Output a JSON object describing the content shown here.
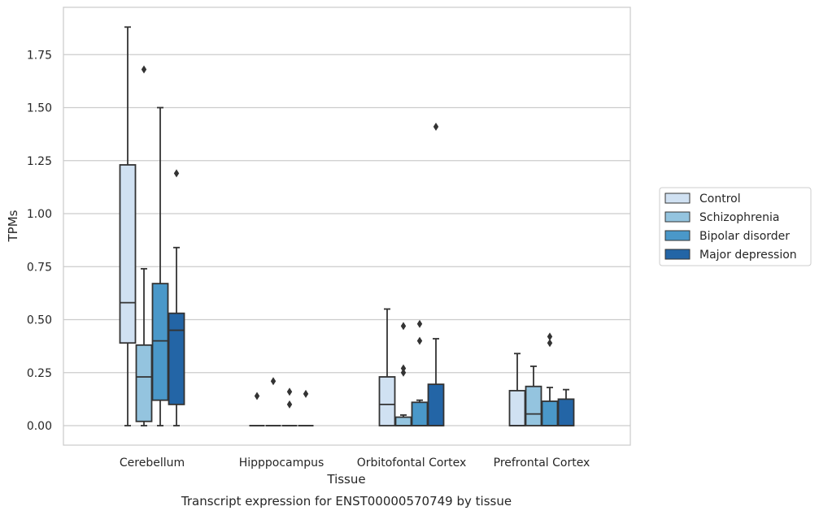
{
  "caption": "Transcript expression for ENST00000570749 by tissue",
  "chart_data": {
    "type": "box",
    "xlabel": "Tissue",
    "ylabel": "TPMs",
    "ylim": [
      -0.09,
      1.98
    ],
    "yticks": [
      "0.00",
      "0.25",
      "0.50",
      "0.75",
      "1.00",
      "1.25",
      "1.50",
      "1.75"
    ],
    "grid": "horizontal",
    "legend_position": "right",
    "categories": [
      "Cerebellum",
      "Hipppocampus",
      "Orbitofontal Cortex",
      "Prefrontal Cortex"
    ],
    "series": [
      {
        "name": "Control",
        "color": "#d0e1f2",
        "boxes": [
          {
            "whislo": 0.0,
            "q1": 0.39,
            "med": 0.58,
            "q3": 1.23,
            "whishi": 1.88,
            "fliers": []
          },
          {
            "whislo": 0.0,
            "q1": 0.0,
            "med": 0.0,
            "q3": 0.0,
            "whishi": 0.0,
            "fliers": [
              0.14
            ]
          },
          {
            "whislo": 0.0,
            "q1": 0.0,
            "med": 0.1,
            "q3": 0.23,
            "whishi": 0.55,
            "fliers": []
          },
          {
            "whislo": 0.0,
            "q1": 0.0,
            "med": 0.0,
            "q3": 0.165,
            "whishi": 0.34,
            "fliers": []
          }
        ]
      },
      {
        "name": "Schizophrenia",
        "color": "#94c4df",
        "boxes": [
          {
            "whislo": 0.0,
            "q1": 0.02,
            "med": 0.23,
            "q3": 0.38,
            "whishi": 0.74,
            "fliers": [
              1.68
            ]
          },
          {
            "whislo": 0.0,
            "q1": 0.0,
            "med": 0.0,
            "q3": 0.0,
            "whishi": 0.0,
            "fliers": [
              0.21
            ]
          },
          {
            "whislo": 0.0,
            "q1": 0.0,
            "med": 0.0,
            "q3": 0.04,
            "whishi": 0.05,
            "fliers": [
              0.47,
              0.27,
              0.25
            ]
          },
          {
            "whislo": 0.0,
            "q1": 0.0,
            "med": 0.055,
            "q3": 0.185,
            "whishi": 0.28,
            "fliers": []
          }
        ]
      },
      {
        "name": "Bipolar disorder",
        "color": "#4a98c9",
        "boxes": [
          {
            "whislo": 0.0,
            "q1": 0.12,
            "med": 0.4,
            "q3": 0.67,
            "whishi": 1.5,
            "fliers": []
          },
          {
            "whislo": 0.0,
            "q1": 0.0,
            "med": 0.0,
            "q3": 0.0,
            "whishi": 0.0,
            "fliers": [
              0.16,
              0.1
            ]
          },
          {
            "whislo": 0.0,
            "q1": 0.0,
            "med": 0.0,
            "q3": 0.11,
            "whishi": 0.12,
            "fliers": [
              0.48,
              0.4
            ]
          },
          {
            "whislo": 0.0,
            "q1": 0.0,
            "med": 0.0,
            "q3": 0.115,
            "whishi": 0.18,
            "fliers": [
              0.42,
              0.39
            ]
          }
        ]
      },
      {
        "name": "Major depression",
        "color": "#2365a6",
        "boxes": [
          {
            "whislo": 0.0,
            "q1": 0.1,
            "med": 0.45,
            "q3": 0.53,
            "whishi": 0.84,
            "fliers": [
              1.19
            ]
          },
          {
            "whislo": 0.0,
            "q1": 0.0,
            "med": 0.0,
            "q3": 0.0,
            "whishi": 0.0,
            "fliers": [
              0.15
            ]
          },
          {
            "whislo": 0.0,
            "q1": 0.0,
            "med": 0.0,
            "q3": 0.195,
            "whishi": 0.41,
            "fliers": [
              1.41
            ]
          },
          {
            "whislo": 0.0,
            "q1": 0.0,
            "med": 0.0,
            "q3": 0.125,
            "whishi": 0.17,
            "fliers": []
          }
        ]
      }
    ]
  }
}
